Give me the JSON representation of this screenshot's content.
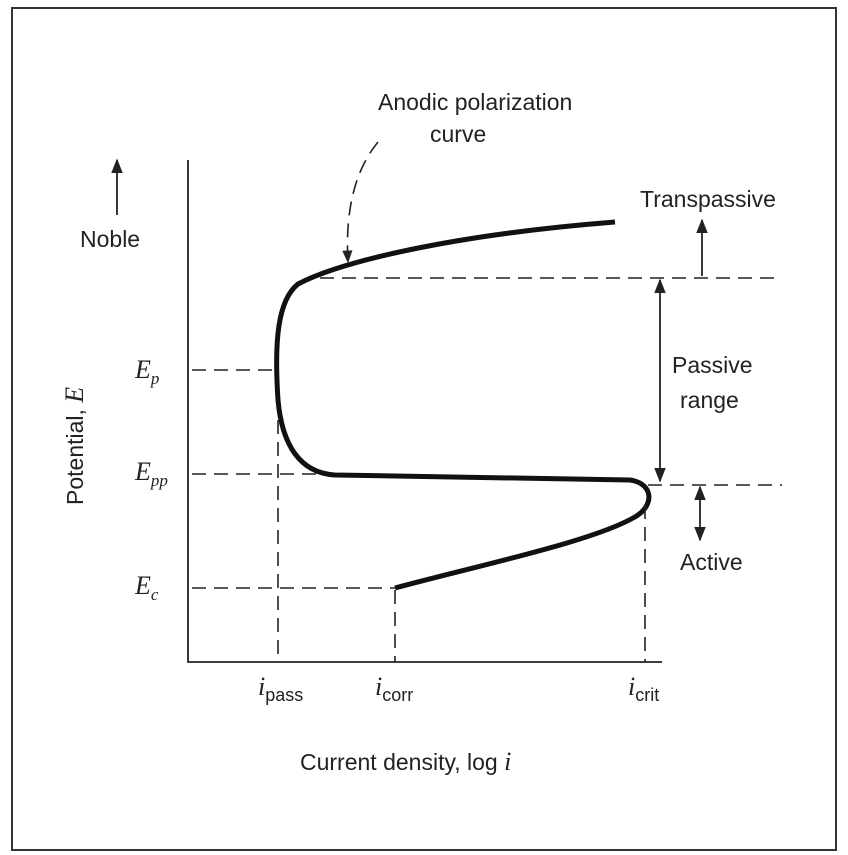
{
  "labels": {
    "curve": [
      "Anodic polarization",
      "curve"
    ],
    "transpassive": "Transpassive",
    "noble": "Noble",
    "y_axis": {
      "main": "Potential, ",
      "var": "E"
    },
    "passive": [
      "Passive",
      "range"
    ],
    "active": "Active",
    "x_axis": {
      "main": "Current density, log ",
      "var": "i"
    },
    "potentials": [
      {
        "main": "E",
        "sub": "p"
      },
      {
        "main": "E",
        "sub": "pp"
      },
      {
        "main": "E",
        "sub": "c"
      }
    ],
    "currents": [
      {
        "main": "i",
        "sub": "pass"
      },
      {
        "main": "i",
        "sub": "corr"
      },
      {
        "main": "i",
        "sub": "crit"
      }
    ]
  }
}
